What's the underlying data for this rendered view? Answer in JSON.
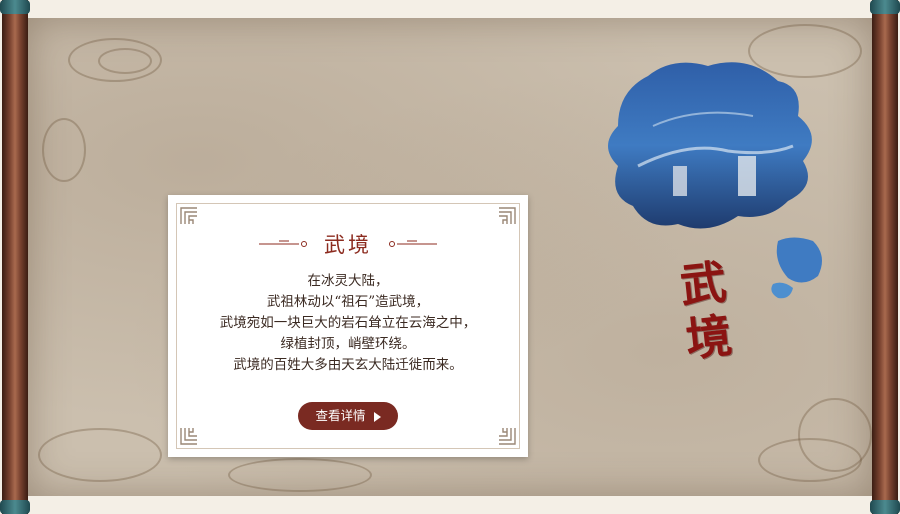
{
  "card": {
    "title": "武境",
    "lines": [
      "在冰灵大陆，",
      "武祖林动以“祖石”造武境，",
      "武境宛如一块巨大的岩石耸立在云海之中，",
      "绿植封顶，峭壁环绕。",
      "武境的百姓大多由天玄大陆迁徙而来。"
    ],
    "button_label": "查看详情"
  },
  "calligraphy": {
    "char1": "武",
    "char2": "境"
  },
  "colors": {
    "accent": "#8c2b1f",
    "button": "#7a2a22",
    "paper": "#cbbfae",
    "rod": "#7a4330",
    "rod_cap": "#4c8a8f"
  },
  "icons": [
    "play-arrow-icon",
    "corner-fret-ornament",
    "title-ornament"
  ]
}
